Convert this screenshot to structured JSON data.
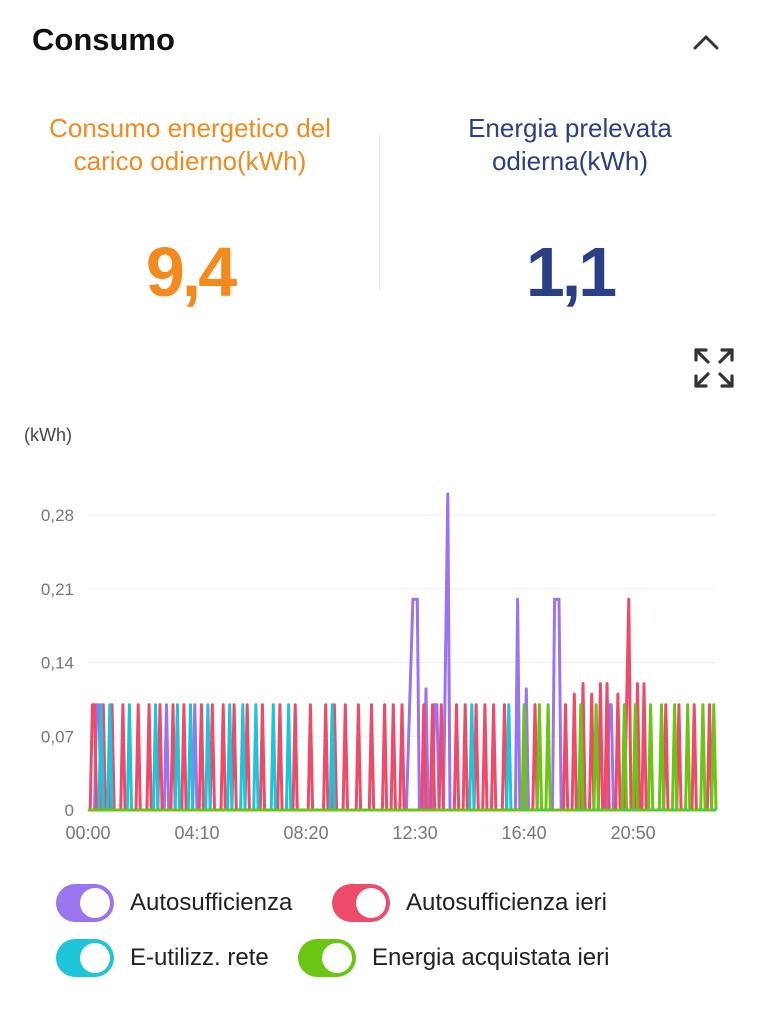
{
  "header": {
    "title": "Consumo",
    "collapse_icon": "chevron-up-icon"
  },
  "stats": {
    "load": {
      "label": "Consumo energetico del carico odierno(kWh)",
      "value": "9,4",
      "color": "#F28A1E"
    },
    "grid": {
      "label": "Energia prelevata odierna(kWh)",
      "value": "1,1",
      "color": "#2A3F85"
    }
  },
  "expand_icon": "expand-icon",
  "chart_data": {
    "type": "line",
    "ylabel": "(kWh)",
    "ylim": [
      0,
      0.3
    ],
    "y_ticks": [
      "0",
      "0,07",
      "0,14",
      "0,21",
      "0,28"
    ],
    "y_tick_values": [
      0,
      0.07,
      0.14,
      0.21,
      0.28
    ],
    "x_ticks": [
      "00:00",
      "04:10",
      "08:20",
      "12:30",
      "16:40",
      "20:50"
    ],
    "x_tick_minutes": [
      0,
      250,
      500,
      750,
      1000,
      1250
    ],
    "xlim_minutes": [
      0,
      1440
    ],
    "grid": true,
    "series": [
      {
        "name": "Autosufficienza",
        "color": "#9B74F0",
        "points": [
          [
            0,
            0
          ],
          [
            15,
            0
          ],
          [
            20,
            0.1
          ],
          [
            25,
            0.1
          ],
          [
            30,
            0
          ],
          [
            175,
            0
          ],
          [
            180,
            0.1
          ],
          [
            185,
            0
          ],
          [
            240,
            0
          ],
          [
            245,
            0.1
          ],
          [
            250,
            0
          ],
          [
            730,
            0
          ],
          [
            745,
            0.2
          ],
          [
            755,
            0.2
          ],
          [
            760,
            0
          ],
          [
            770,
            0
          ],
          [
            775,
            0.115
          ],
          [
            780,
            0
          ],
          [
            790,
            0
          ],
          [
            795,
            0.1
          ],
          [
            800,
            0.1
          ],
          [
            805,
            0
          ],
          [
            815,
            0
          ],
          [
            825,
            0.3
          ],
          [
            830,
            0
          ],
          [
            980,
            0
          ],
          [
            985,
            0.2
          ],
          [
            990,
            0
          ],
          [
            1000,
            0
          ],
          [
            1005,
            0.115
          ],
          [
            1010,
            0
          ],
          [
            1065,
            0
          ],
          [
            1070,
            0.2
          ],
          [
            1080,
            0.2
          ],
          [
            1085,
            0
          ],
          [
            1190,
            0
          ],
          [
            1195,
            0.1
          ],
          [
            1200,
            0.1
          ],
          [
            1205,
            0
          ],
          [
            1440,
            0
          ]
        ]
      },
      {
        "name": "Autosufficienza ieri",
        "color": "#EE4B6A",
        "points": [
          [
            0,
            0
          ],
          [
            5,
            0
          ],
          [
            10,
            0.1
          ],
          [
            15,
            0.1
          ],
          [
            20,
            0
          ],
          [
            30,
            0
          ],
          [
            35,
            0.1
          ],
          [
            40,
            0
          ],
          [
            50,
            0
          ],
          [
            55,
            0.1
          ],
          [
            60,
            0
          ],
          [
            75,
            0
          ],
          [
            80,
            0.1
          ],
          [
            85,
            0
          ],
          [
            110,
            0
          ],
          [
            115,
            0.1
          ],
          [
            120,
            0
          ],
          [
            135,
            0
          ],
          [
            140,
            0.1
          ],
          [
            145,
            0
          ],
          [
            160,
            0
          ],
          [
            165,
            0.1
          ],
          [
            170,
            0
          ],
          [
            190,
            0
          ],
          [
            195,
            0.1
          ],
          [
            200,
            0
          ],
          [
            215,
            0
          ],
          [
            220,
            0.1
          ],
          [
            225,
            0
          ],
          [
            255,
            0
          ],
          [
            260,
            0.1
          ],
          [
            265,
            0
          ],
          [
            280,
            0
          ],
          [
            285,
            0.1
          ],
          [
            290,
            0
          ],
          [
            305,
            0
          ],
          [
            310,
            0.1
          ],
          [
            315,
            0
          ],
          [
            330,
            0
          ],
          [
            335,
            0.1
          ],
          [
            340,
            0
          ],
          [
            360,
            0
          ],
          [
            365,
            0.1
          ],
          [
            370,
            0
          ],
          [
            395,
            0
          ],
          [
            400,
            0.1
          ],
          [
            405,
            0
          ],
          [
            435,
            0
          ],
          [
            440,
            0.1
          ],
          [
            445,
            0
          ],
          [
            470,
            0
          ],
          [
            475,
            0.1
          ],
          [
            480,
            0
          ],
          [
            505,
            0
          ],
          [
            510,
            0.1
          ],
          [
            515,
            0
          ],
          [
            540,
            0
          ],
          [
            545,
            0.1
          ],
          [
            550,
            0
          ],
          [
            560,
            0
          ],
          [
            565,
            0.1
          ],
          [
            570,
            0
          ],
          [
            585,
            0
          ],
          [
            590,
            0.1
          ],
          [
            595,
            0
          ],
          [
            615,
            0
          ],
          [
            620,
            0.1
          ],
          [
            625,
            0
          ],
          [
            645,
            0
          ],
          [
            650,
            0.1
          ],
          [
            655,
            0
          ],
          [
            675,
            0
          ],
          [
            680,
            0.1
          ],
          [
            685,
            0
          ],
          [
            695,
            0
          ],
          [
            700,
            0.1
          ],
          [
            705,
            0
          ],
          [
            715,
            0
          ],
          [
            720,
            0.1
          ],
          [
            725,
            0
          ],
          [
            765,
            0
          ],
          [
            770,
            0.1
          ],
          [
            775,
            0
          ],
          [
            785,
            0
          ],
          [
            790,
            0.1
          ],
          [
            795,
            0
          ],
          [
            805,
            0
          ],
          [
            810,
            0.1
          ],
          [
            815,
            0
          ],
          [
            840,
            0
          ],
          [
            845,
            0.1
          ],
          [
            850,
            0
          ],
          [
            860,
            0
          ],
          [
            865,
            0.1
          ],
          [
            870,
            0
          ],
          [
            885,
            0
          ],
          [
            890,
            0.1
          ],
          [
            895,
            0
          ],
          [
            905,
            0
          ],
          [
            910,
            0.1
          ],
          [
            915,
            0
          ],
          [
            925,
            0
          ],
          [
            930,
            0.1
          ],
          [
            935,
            0
          ],
          [
            950,
            0
          ],
          [
            955,
            0.1
          ],
          [
            960,
            0
          ],
          [
            1020,
            0
          ],
          [
            1025,
            0.1
          ],
          [
            1030,
            0
          ],
          [
            1090,
            0
          ],
          [
            1095,
            0.1
          ],
          [
            1100,
            0
          ],
          [
            1110,
            0
          ],
          [
            1115,
            0.11
          ],
          [
            1120,
            0
          ],
          [
            1130,
            0
          ],
          [
            1135,
            0.12
          ],
          [
            1140,
            0
          ],
          [
            1150,
            0
          ],
          [
            1155,
            0.11
          ],
          [
            1160,
            0
          ],
          [
            1170,
            0
          ],
          [
            1175,
            0.12
          ],
          [
            1180,
            0
          ],
          [
            1185,
            0
          ],
          [
            1190,
            0.12
          ],
          [
            1195,
            0
          ],
          [
            1210,
            0
          ],
          [
            1215,
            0.11
          ],
          [
            1220,
            0
          ],
          [
            1230,
            0
          ],
          [
            1240,
            0.2
          ],
          [
            1245,
            0
          ],
          [
            1255,
            0
          ],
          [
            1260,
            0.12
          ],
          [
            1265,
            0
          ],
          [
            1270,
            0
          ],
          [
            1275,
            0.12
          ],
          [
            1280,
            0
          ],
          [
            1320,
            0
          ],
          [
            1325,
            0.1
          ],
          [
            1330,
            0
          ],
          [
            1350,
            0
          ],
          [
            1355,
            0.1
          ],
          [
            1360,
            0
          ],
          [
            1385,
            0
          ],
          [
            1390,
            0.1
          ],
          [
            1395,
            0
          ],
          [
            1420,
            0
          ],
          [
            1425,
            0.1
          ],
          [
            1430,
            0
          ],
          [
            1440,
            0
          ]
        ]
      },
      {
        "name": "E-utilizz. rete",
        "color": "#1EC5D8",
        "points": [
          [
            0,
            0
          ],
          [
            25,
            0
          ],
          [
            30,
            0.1
          ],
          [
            35,
            0
          ],
          [
            45,
            0
          ],
          [
            50,
            0.1
          ],
          [
            55,
            0
          ],
          [
            90,
            0
          ],
          [
            95,
            0.1
          ],
          [
            100,
            0
          ],
          [
            150,
            0
          ],
          [
            155,
            0.1
          ],
          [
            160,
            0
          ],
          [
            200,
            0
          ],
          [
            205,
            0.1
          ],
          [
            210,
            0
          ],
          [
            230,
            0
          ],
          [
            235,
            0.1
          ],
          [
            240,
            0
          ],
          [
            270,
            0
          ],
          [
            275,
            0.1
          ],
          [
            280,
            0
          ],
          [
            320,
            0
          ],
          [
            325,
            0.1
          ],
          [
            330,
            0
          ],
          [
            350,
            0
          ],
          [
            355,
            0.1
          ],
          [
            360,
            0
          ],
          [
            380,
            0
          ],
          [
            385,
            0.1
          ],
          [
            390,
            0
          ],
          [
            420,
            0
          ],
          [
            425,
            0.1
          ],
          [
            430,
            0
          ],
          [
            455,
            0
          ],
          [
            460,
            0.1
          ],
          [
            465,
            0
          ],
          [
            555,
            0
          ],
          [
            560,
            0.1
          ],
          [
            565,
            0
          ],
          [
            875,
            0
          ],
          [
            880,
            0.1
          ],
          [
            885,
            0
          ],
          [
            960,
            0
          ],
          [
            965,
            0.1
          ],
          [
            970,
            0
          ],
          [
            1440,
            0
          ]
        ]
      },
      {
        "name": "Energia acquistata ieri",
        "color": "#6BC514",
        "points": [
          [
            0,
            0
          ],
          [
            995,
            0
          ],
          [
            1000,
            0.1
          ],
          [
            1005,
            0
          ],
          [
            1030,
            0
          ],
          [
            1035,
            0.1
          ],
          [
            1040,
            0
          ],
          [
            1050,
            0
          ],
          [
            1055,
            0.1
          ],
          [
            1060,
            0
          ],
          [
            1125,
            0
          ],
          [
            1130,
            0.1
          ],
          [
            1135,
            0
          ],
          [
            1160,
            0
          ],
          [
            1165,
            0.1
          ],
          [
            1170,
            0
          ],
          [
            1225,
            0
          ],
          [
            1230,
            0.1
          ],
          [
            1235,
            0
          ],
          [
            1250,
            0
          ],
          [
            1255,
            0.1
          ],
          [
            1260,
            0
          ],
          [
            1285,
            0
          ],
          [
            1290,
            0.1
          ],
          [
            1295,
            0
          ],
          [
            1310,
            0
          ],
          [
            1315,
            0.1
          ],
          [
            1320,
            0
          ],
          [
            1340,
            0
          ],
          [
            1345,
            0.1
          ],
          [
            1350,
            0
          ],
          [
            1370,
            0
          ],
          [
            1375,
            0.1
          ],
          [
            1380,
            0
          ],
          [
            1405,
            0
          ],
          [
            1410,
            0.1
          ],
          [
            1415,
            0
          ],
          [
            1430,
            0
          ],
          [
            1435,
            0.1
          ],
          [
            1440,
            0
          ]
        ]
      }
    ]
  },
  "legend": [
    {
      "label": "Autosufficienza",
      "color": "#9B74F0",
      "on": true
    },
    {
      "label": "Autosufficienza ieri",
      "color": "#EE4B6A",
      "on": true
    },
    {
      "label": "E-utilizz. rete",
      "color": "#1EC5D8",
      "on": true
    },
    {
      "label": "Energia acquistata ieri",
      "color": "#6BC514",
      "on": true
    }
  ]
}
